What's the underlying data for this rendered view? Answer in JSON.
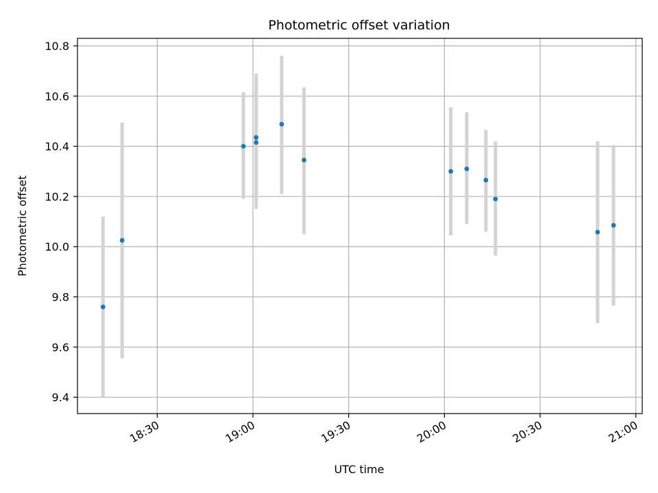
{
  "chart_data": {
    "type": "scatter",
    "title": "Photometric offset variation",
    "xlabel": "UTC time",
    "ylabel": "Photometric offset",
    "grid": true,
    "x_scale": "time",
    "xlim": [
      "18:05",
      "21:02"
    ],
    "ylim": [
      9.335,
      10.83
    ],
    "x_ticks": [
      "18:30",
      "19:00",
      "19:30",
      "20:00",
      "20:30",
      "21:00"
    ],
    "y_ticks": [
      "9.4",
      "9.6",
      "9.8",
      "10.0",
      "10.2",
      "10.4",
      "10.6",
      "10.8"
    ],
    "point_color": "#1f77b4",
    "errorbar_color": "#d3d3d3",
    "series": [
      {
        "points": [
          {
            "x": "18:13",
            "y": 9.76,
            "yerr_low": 9.4,
            "yerr_high": 10.12
          },
          {
            "x": "18:19",
            "y": 10.025,
            "yerr_low": 9.555,
            "yerr_high": 10.495
          },
          {
            "x": "18:57",
            "y": 10.4,
            "yerr_low": 10.19,
            "yerr_high": 10.615
          },
          {
            "x": "19:01",
            "y": 10.415,
            "yerr_low": 10.15,
            "yerr_high": 10.68
          },
          {
            "x": "19:01",
            "y": 10.435,
            "yerr_low": 10.18,
            "yerr_high": 10.69
          },
          {
            "x": "19:09",
            "y": 10.488,
            "yerr_low": 10.21,
            "yerr_high": 10.76
          },
          {
            "x": "19:16",
            "y": 10.345,
            "yerr_low": 10.05,
            "yerr_high": 10.635
          },
          {
            "x": "20:02",
            "y": 10.3,
            "yerr_low": 10.045,
            "yerr_high": 10.555
          },
          {
            "x": "20:07",
            "y": 10.31,
            "yerr_low": 10.09,
            "yerr_high": 10.535
          },
          {
            "x": "20:13",
            "y": 10.265,
            "yerr_low": 10.06,
            "yerr_high": 10.465
          },
          {
            "x": "20:16",
            "y": 10.19,
            "yerr_low": 9.965,
            "yerr_high": 10.42
          },
          {
            "x": "20:48",
            "y": 10.058,
            "yerr_low": 9.695,
            "yerr_high": 10.42
          },
          {
            "x": "20:53",
            "y": 10.085,
            "yerr_low": 9.765,
            "yerr_high": 10.405
          }
        ]
      }
    ]
  }
}
